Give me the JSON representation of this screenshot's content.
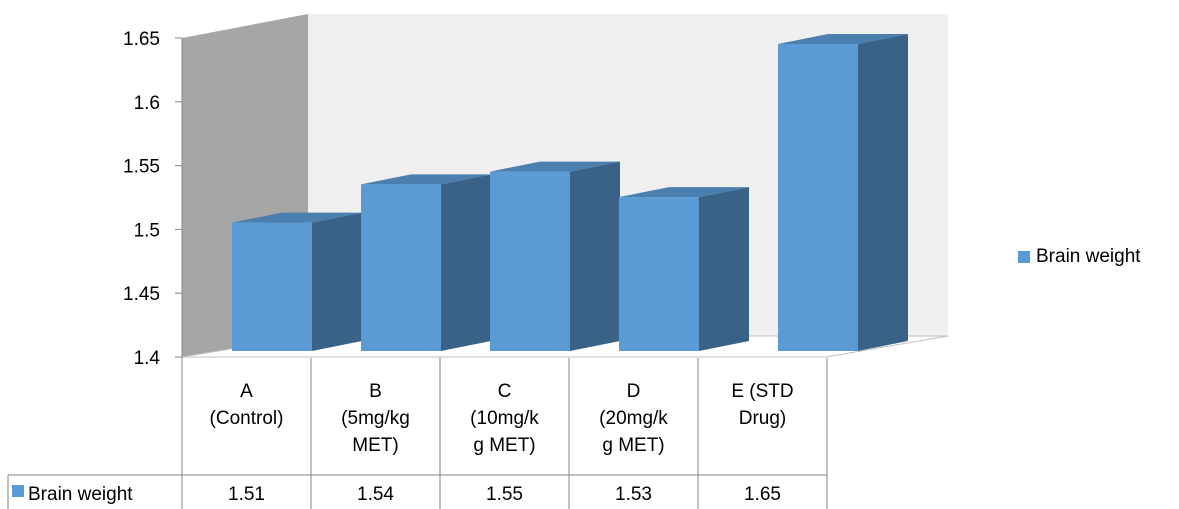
{
  "chart_data": {
    "type": "bar",
    "categories": [
      [
        "A",
        "(Control)"
      ],
      [
        "B",
        "(5mg/kg",
        "MET)"
      ],
      [
        "C",
        "(10mg/k",
        "g MET)"
      ],
      [
        "D",
        "(20mg/k",
        "g MET)"
      ],
      [
        "E (STD",
        "Drug)"
      ]
    ],
    "series": [
      {
        "name": "Brain weight",
        "values": [
          1.51,
          1.54,
          1.55,
          1.53,
          1.65
        ],
        "value_labels": [
          "1.51",
          "1.54",
          "1.55",
          "1.53",
          "1.65"
        ]
      }
    ],
    "ylim": [
      1.4,
      1.65
    ],
    "yticks": [
      "1.4",
      "1.45",
      "1.5",
      "1.55",
      "1.6",
      "1.65"
    ],
    "legend_position": "right",
    "data_table": true,
    "colors": {
      "bar_front": "#5b9bd5",
      "bar_side": "#3a6186",
      "bar_top": "#4a7fb0",
      "side_wall": "#a6a6a6",
      "back_wall": "#efefef"
    }
  }
}
